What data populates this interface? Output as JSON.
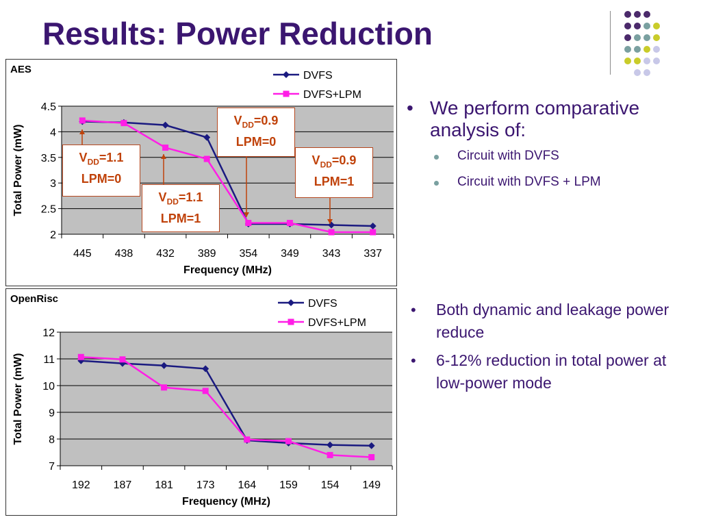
{
  "slide": {
    "title": "Results: Power Reduction"
  },
  "colors": {
    "title": "#3b1670",
    "dvfs": "#1a1a80",
    "dvfs_lpm": "#ff1ee6",
    "plot_bg": "#c0c0c0",
    "annotation": "#c0420a",
    "dot_purple": "#4b2a6b",
    "dot_teal": "#7aa0a0",
    "dot_yellow": "#c9cc2a",
    "dot_lavender": "#c8c8e8"
  },
  "bullets_top": {
    "main": "We perform comparative analysis of:",
    "sub": [
      "Circuit with DVFS",
      "Circuit with DVFS + LPM"
    ]
  },
  "bullets_bottom": [
    "Both dynamic and leakage power reduce",
    "6-12% reduction in total power at low-power mode"
  ],
  "annotations": {
    "a1": {
      "vdd": "1.1",
      "lpm": "LPM=0"
    },
    "a2": {
      "vdd": "1.1",
      "lpm": "LPM=1"
    },
    "a3": {
      "vdd": "0.9",
      "lpm": "LPM=0"
    },
    "a4": {
      "vdd": "0.9",
      "lpm": "LPM=1"
    },
    "v_prefix": "V",
    "dd": "DD",
    "eq": "="
  },
  "chart_data": [
    {
      "type": "line",
      "title": "AES",
      "xlabel": "Frequency (MHz)",
      "ylabel": "Total Power (mW)",
      "categories": [
        "445",
        "438",
        "432",
        "389",
        "354",
        "349",
        "343",
        "337"
      ],
      "ylim": [
        2,
        4.5
      ],
      "yticks": [
        "2",
        "2.5",
        "3",
        "3.5",
        "4",
        "4.5"
      ],
      "grid": true,
      "legend": "top-right",
      "series": [
        {
          "name": "DVFS",
          "values": [
            4.2,
            4.18,
            4.13,
            3.89,
            2.2,
            2.2,
            2.18,
            2.16
          ]
        },
        {
          "name": "DVFS+LPM",
          "values": [
            4.22,
            4.17,
            3.69,
            3.47,
            2.22,
            2.22,
            2.04,
            2.04
          ]
        }
      ]
    },
    {
      "type": "line",
      "title": "OpenRisc",
      "xlabel": "Frequency (MHz)",
      "ylabel": "Total Power (mW)",
      "categories": [
        "192",
        "187",
        "181",
        "173",
        "164",
        "159",
        "154",
        "149"
      ],
      "ylim": [
        7,
        12
      ],
      "yticks": [
        "7",
        "8",
        "9",
        "10",
        "11",
        "12"
      ],
      "grid": true,
      "legend": "top-right",
      "series": [
        {
          "name": "DVFS",
          "values": [
            10.93,
            10.83,
            10.75,
            10.63,
            7.95,
            7.85,
            7.78,
            7.75
          ]
        },
        {
          "name": "DVFS+LPM",
          "values": [
            11.07,
            10.98,
            9.93,
            9.8,
            7.98,
            7.92,
            7.4,
            7.32
          ]
        }
      ]
    }
  ]
}
